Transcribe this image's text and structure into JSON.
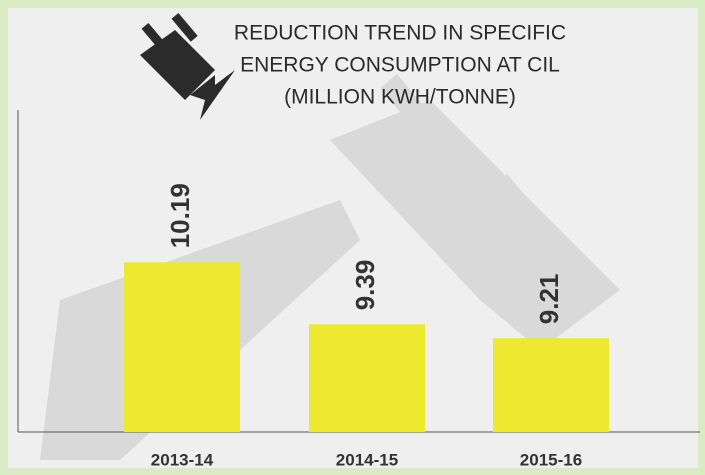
{
  "chart_data": {
    "type": "bar",
    "title": [
      "REDUCTION TREND IN SPECIFIC",
      "ENERGY CONSUMPTION AT CIL",
      "(MILLION KWH/TONNE)"
    ],
    "categories": [
      "2013-14",
      "2014-15",
      "2015-16"
    ],
    "values": [
      10.19,
      9.39,
      9.21
    ],
    "color": "#ede830",
    "ylim": [
      8,
      12
    ]
  }
}
